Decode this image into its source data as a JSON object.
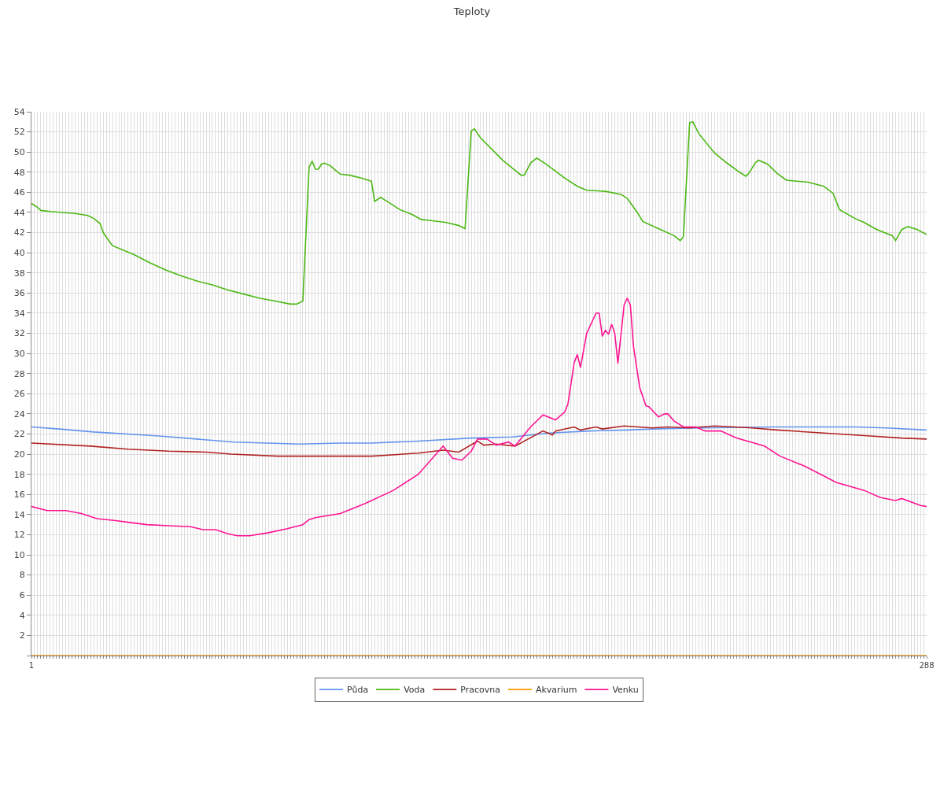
{
  "chart_data": {
    "type": "line",
    "title": "Teploty",
    "xlim": [
      1,
      288
    ],
    "xticks": [
      1,
      {
        "value": 2,
        "label": null
      },
      {
        "value": 3,
        "label": null
      },
      {
        "value": 4,
        "label": null
      },
      {
        "value": 5,
        "label": null
      },
      {
        "value": 6,
        "label": null
      },
      {
        "value": 7,
        "label": null
      },
      {
        "value": 8,
        "label": null
      },
      {
        "value": 9,
        "label": null
      },
      {
        "value": 10,
        "label": null
      },
      {
        "value": 11,
        "label": null
      },
      {
        "value": 12,
        "label": null
      },
      {
        "value": 13,
        "label": null
      },
      {
        "value": 14,
        "label": null
      },
      {
        "value": 15,
        "label": null
      },
      {
        "value": 16,
        "label": null
      },
      {
        "value": 17,
        "label": null
      },
      {
        "value": 18,
        "label": null
      },
      {
        "value": 19,
        "label": null
      },
      {
        "value": 20,
        "label": null
      },
      {
        "value": 21,
        "label": null
      },
      {
        "value": 22,
        "label": null
      },
      {
        "value": 23,
        "label": null
      },
      {
        "value": 24,
        "label": null
      },
      {
        "value": 25,
        "label": null
      },
      {
        "value": 26,
        "label": null
      },
      {
        "value": 27,
        "label": null
      },
      {
        "value": 28,
        "label": null
      },
      {
        "value": 29,
        "label": null
      },
      {
        "value": 30,
        "label": null
      },
      {
        "value": 31,
        "label": null
      },
      {
        "value": 32,
        "label": null
      },
      {
        "value": 33,
        "label": null
      },
      {
        "value": 34,
        "label": null
      },
      {
        "value": 35,
        "label": null
      },
      {
        "value": 36,
        "label": null
      },
      {
        "value": 37,
        "label": null
      },
      {
        "value": 38,
        "label": null
      },
      {
        "value": 39,
        "label": null
      },
      {
        "value": 40,
        "label": null
      },
      {
        "value": 41,
        "label": null
      },
      {
        "value": 42,
        "label": null
      },
      {
        "value": 43,
        "label": null
      },
      {
        "value": 44,
        "label": null
      },
      {
        "value": 45,
        "label": null
      },
      {
        "value": 46,
        "label": null
      },
      {
        "value": 47,
        "label": null
      },
      {
        "value": 48,
        "label": null
      },
      {
        "value": 49,
        "label": null
      },
      {
        "value": 50,
        "label": null
      },
      {
        "value": 51,
        "label": null
      },
      {
        "value": 52,
        "label": null
      },
      {
        "value": 53,
        "label": null
      },
      {
        "value": 54,
        "label": null
      },
      {
        "value": 55,
        "label": null
      },
      {
        "value": 56,
        "label": null
      },
      {
        "value": 57,
        "label": null
      },
      {
        "value": 58,
        "label": null
      },
      {
        "value": 59,
        "label": null
      },
      {
        "value": 60,
        "label": null
      },
      {
        "value": 61,
        "label": null
      },
      {
        "value": 62,
        "label": null
      },
      {
        "value": 63,
        "label": null
      },
      {
        "value": 64,
        "label": null
      },
      {
        "value": 65,
        "label": null
      },
      {
        "value": 66,
        "label": null
      },
      {
        "value": 67,
        "label": null
      },
      {
        "value": 68,
        "label": null
      },
      {
        "value": 69,
        "label": null
      },
      {
        "value": 70,
        "label": null
      },
      {
        "value": 71,
        "label": null
      },
      {
        "value": 72,
        "label": null
      },
      {
        "value": 73,
        "label": null
      },
      {
        "value": 74,
        "label": null
      },
      {
        "value": 75,
        "label": null
      },
      {
        "value": 76,
        "label": null
      },
      {
        "value": 77,
        "label": null
      },
      {
        "value": 78,
        "label": null
      },
      {
        "value": 79,
        "label": null
      },
      {
        "value": 80,
        "label": null
      },
      {
        "value": 81,
        "label": null
      },
      {
        "value": 82,
        "label": null
      },
      {
        "value": 83,
        "label": null
      },
      {
        "value": 84,
        "label": null
      },
      {
        "value": 85,
        "label": null
      },
      {
        "value": 86,
        "label": null
      },
      {
        "value": 87,
        "label": null
      },
      {
        "value": 88,
        "label": null
      },
      {
        "value": 89,
        "label": null
      },
      {
        "value": 90,
        "label": null
      },
      {
        "value": 91,
        "label": null
      },
      {
        "value": 92,
        "label": null
      },
      {
        "value": 93,
        "label": null
      },
      {
        "value": 94,
        "label": null
      },
      {
        "value": 95,
        "label": null
      },
      {
        "value": 96,
        "label": null
      },
      {
        "value": 97,
        "label": null
      },
      {
        "value": 98,
        "label": null
      },
      {
        "value": 99,
        "label": null
      },
      {
        "value": 100,
        "label": null
      },
      {
        "value": 101,
        "label": null
      },
      {
        "value": 102,
        "label": null
      },
      {
        "value": 103,
        "label": null
      },
      {
        "value": 104,
        "label": null
      },
      {
        "value": 105,
        "label": null
      },
      {
        "value": 106,
        "label": null
      },
      {
        "value": 107,
        "label": null
      },
      {
        "value": 108,
        "label": null
      },
      {
        "value": 109,
        "label": null
      },
      {
        "value": 110,
        "label": null
      },
      {
        "value": 111,
        "label": null
      },
      {
        "value": 112,
        "label": null
      },
      {
        "value": 113,
        "label": null
      },
      {
        "value": 114,
        "label": null
      },
      {
        "value": 115,
        "label": null
      },
      {
        "value": 116,
        "label": null
      },
      {
        "value": 117,
        "label": null
      },
      {
        "value": 118,
        "label": null
      },
      {
        "value": 119,
        "label": null
      },
      {
        "value": 120,
        "label": null
      },
      {
        "value": 121,
        "label": null
      },
      {
        "value": 122,
        "label": null
      },
      {
        "value": 123,
        "label": null
      },
      {
        "value": 124,
        "label": null
      },
      {
        "value": 125,
        "label": null
      },
      {
        "value": 126,
        "label": null
      },
      {
        "value": 127,
        "label": null
      },
      {
        "value": 128,
        "label": null
      },
      {
        "value": 129,
        "label": null
      },
      {
        "value": 130,
        "label": null
      },
      {
        "value": 131,
        "label": null
      },
      {
        "value": 132,
        "label": null
      },
      {
        "value": 133,
        "label": null
      },
      {
        "value": 134,
        "label": null
      },
      {
        "value": 135,
        "label": null
      },
      {
        "value": 136,
        "label": null
      },
      {
        "value": 137,
        "label": null
      },
      {
        "value": 138,
        "label": null
      },
      {
        "value": 139,
        "label": null
      },
      {
        "value": 140,
        "label": null
      },
      {
        "value": 141,
        "label": null
      },
      {
        "value": 142,
        "label": null
      },
      {
        "value": 143,
        "label": null
      },
      {
        "value": 144,
        "label": null
      },
      {
        "value": 145,
        "label": null
      },
      {
        "value": 146,
        "label": null
      },
      {
        "value": 147,
        "label": null
      },
      {
        "value": 148,
        "label": null
      },
      {
        "value": 149,
        "label": null
      },
      {
        "value": 150,
        "label": null
      },
      {
        "value": 151,
        "label": null
      },
      {
        "value": 152,
        "label": null
      },
      {
        "value": 153,
        "label": null
      },
      {
        "value": 154,
        "label": null
      },
      {
        "value": 155,
        "label": null
      },
      {
        "value": 156,
        "label": null
      },
      {
        "value": 157,
        "label": null
      },
      {
        "value": 158,
        "label": null
      },
      {
        "value": 159,
        "label": null
      },
      {
        "value": 160,
        "label": null
      },
      {
        "value": 161,
        "label": null
      },
      {
        "value": 162,
        "label": null
      },
      {
        "value": 163,
        "label": null
      },
      {
        "value": 164,
        "label": null
      },
      {
        "value": 165,
        "label": null
      },
      {
        "value": 166,
        "label": null
      },
      {
        "value": 167,
        "label": null
      },
      {
        "value": 168,
        "label": null
      },
      {
        "value": 169,
        "label": null
      },
      {
        "value": 170,
        "label": null
      },
      {
        "value": 171,
        "label": null
      },
      {
        "value": 172,
        "label": null
      },
      {
        "value": 173,
        "label": null
      },
      {
        "value": 174,
        "label": null
      },
      {
        "value": 175,
        "label": null
      },
      {
        "value": 176,
        "label": null
      },
      {
        "value": 177,
        "label": null
      },
      {
        "value": 178,
        "label": null
      },
      {
        "value": 179,
        "label": null
      },
      {
        "value": 180,
        "label": null
      },
      {
        "value": 181,
        "label": null
      },
      {
        "value": 182,
        "label": null
      },
      {
        "value": 183,
        "label": null
      },
      {
        "value": 184,
        "label": null
      },
      {
        "value": 185,
        "label": null
      },
      {
        "value": 186,
        "label": null
      },
      {
        "value": 187,
        "label": null
      },
      {
        "value": 188,
        "label": null
      },
      {
        "value": 189,
        "label": null
      },
      {
        "value": 190,
        "label": null
      },
      {
        "value": 191,
        "label": null
      },
      {
        "value": 192,
        "label": null
      },
      {
        "value": 193,
        "label": null
      },
      {
        "value": 194,
        "label": null
      },
      {
        "value": 195,
        "label": null
      },
      {
        "value": 196,
        "label": null
      },
      {
        "value": 197,
        "label": null
      },
      {
        "value": 198,
        "label": null
      },
      {
        "value": 199,
        "label": null
      },
      {
        "value": 200,
        "label": null
      },
      {
        "value": 201,
        "label": null
      },
      {
        "value": 202,
        "label": null
      },
      {
        "value": 203,
        "label": null
      },
      {
        "value": 204,
        "label": null
      },
      {
        "value": 205,
        "label": null
      },
      {
        "value": 206,
        "label": null
      },
      {
        "value": 207,
        "label": null
      },
      {
        "value": 208,
        "label": null
      },
      {
        "value": 209,
        "label": null
      },
      {
        "value": 210,
        "label": null
      },
      {
        "value": 211,
        "label": null
      },
      {
        "value": 212,
        "label": null
      },
      {
        "value": 213,
        "label": null
      },
      {
        "value": 214,
        "label": null
      },
      {
        "value": 215,
        "label": null
      },
      {
        "value": 216,
        "label": null
      },
      {
        "value": 217,
        "label": null
      },
      {
        "value": 218,
        "label": null
      },
      {
        "value": 219,
        "label": null
      },
      {
        "value": 220,
        "label": null
      },
      {
        "value": 221,
        "label": null
      },
      {
        "value": 222,
        "label": null
      },
      {
        "value": 223,
        "label": null
      },
      {
        "value": 224,
        "label": null
      },
      {
        "value": 225,
        "label": null
      },
      {
        "value": 226,
        "label": null
      },
      {
        "value": 227,
        "label": null
      },
      {
        "value": 228,
        "label": null
      },
      {
        "value": 229,
        "label": null
      },
      {
        "value": 230,
        "label": null
      },
      {
        "value": 231,
        "label": null
      },
      {
        "value": 232,
        "label": null
      },
      {
        "value": 233,
        "label": null
      },
      {
        "value": 234,
        "label": null
      },
      {
        "value": 235,
        "label": null
      },
      {
        "value": 236,
        "label": null
      },
      {
        "value": 237,
        "label": null
      },
      {
        "value": 238,
        "label": null
      },
      {
        "value": 239,
        "label": null
      },
      {
        "value": 240,
        "label": null
      },
      {
        "value": 241,
        "label": null
      },
      {
        "value": 242,
        "label": null
      },
      {
        "value": 243,
        "label": null
      },
      {
        "value": 244,
        "label": null
      },
      {
        "value": 245,
        "label": null
      },
      {
        "value": 246,
        "label": null
      },
      {
        "value": 247,
        "label": null
      },
      {
        "value": 248,
        "label": null
      },
      {
        "value": 249,
        "label": null
      },
      {
        "value": 250,
        "label": null
      },
      {
        "value": 251,
        "label": null
      },
      {
        "value": 252,
        "label": null
      },
      {
        "value": 253,
        "label": null
      },
      {
        "value": 254,
        "label": null
      },
      {
        "value": 255,
        "label": null
      },
      {
        "value": 256,
        "label": null
      },
      {
        "value": 257,
        "label": null
      },
      {
        "value": 258,
        "label": null
      },
      {
        "value": 259,
        "label": null
      },
      {
        "value": 260,
        "label": null
      },
      {
        "value": 261,
        "label": null
      },
      {
        "value": 262,
        "label": null
      },
      {
        "value": 263,
        "label": null
      },
      {
        "value": 264,
        "label": null
      },
      {
        "value": 265,
        "label": null
      },
      {
        "value": 266,
        "label": null
      },
      {
        "value": 267,
        "label": null
      },
      {
        "value": 268,
        "label": null
      },
      {
        "value": 269,
        "label": null
      },
      {
        "value": 270,
        "label": null
      },
      {
        "value": 271,
        "label": null
      },
      {
        "value": 272,
        "label": null
      },
      {
        "value": 273,
        "label": null
      },
      {
        "value": 274,
        "label": null
      },
      {
        "value": 275,
        "label": null
      },
      {
        "value": 276,
        "label": null
      },
      {
        "value": 277,
        "label": null
      },
      {
        "value": 278,
        "label": null
      },
      {
        "value": 279,
        "label": null
      },
      {
        "value": 280,
        "label": null
      },
      {
        "value": 281,
        "label": null
      },
      {
        "value": 282,
        "label": null
      },
      {
        "value": 283,
        "label": null
      },
      {
        "value": 284,
        "label": null
      },
      {
        "value": 285,
        "label": null
      },
      {
        "value": 286,
        "label": null
      },
      {
        "value": 287,
        "label": null
      },
      288
    ],
    "ylim": [
      0,
      54
    ],
    "yticks": [
      {
        "value": 0,
        "label": null
      },
      2,
      4,
      6,
      8,
      10,
      12,
      14,
      16,
      18,
      20,
      22,
      24,
      26,
      28,
      30,
      32,
      34,
      36,
      38,
      40,
      42,
      44,
      46,
      48,
      50,
      52,
      54
    ],
    "grid": true,
    "legend": "bottom",
    "marker": "none",
    "line_style": "solid",
    "series": [
      {
        "name": "Půda",
        "color": "#6495ed",
        "x": [
          1,
          10,
          21,
          42,
          54,
          66,
          87,
          100,
          110,
          125,
          142,
          155,
          167,
          180,
          192,
          200,
          215,
          240,
          265,
          275,
          288
        ],
        "values": [
          22.7,
          22.5,
          22.2,
          21.8,
          21.5,
          21.2,
          21.0,
          21.1,
          21.1,
          21.3,
          21.6,
          21.7,
          22.1,
          22.3,
          22.4,
          22.5,
          22.6,
          22.7,
          22.7,
          22.6,
          22.4
        ]
      },
      {
        "name": "Voda",
        "color": "#4cb814",
        "x": [
          1,
          3,
          4,
          7,
          11,
          15,
          19,
          21,
          23,
          24,
          26,
          27,
          34,
          39,
          44,
          49,
          54,
          59,
          64,
          69,
          74,
          79,
          84,
          86,
          88,
          90,
          91,
          92,
          93,
          94,
          95,
          97,
          98,
          100,
          103,
          107,
          109,
          110,
          111,
          113,
          114,
          116,
          119,
          123,
          126,
          129,
          134,
          138,
          140,
          142,
          143,
          145,
          152,
          154,
          158,
          159,
          161,
          163,
          166,
          172,
          176,
          179,
          185,
          190,
          192,
          195,
          197,
          202,
          207,
          209,
          210,
          212,
          213,
          215,
          220,
          224,
          228,
          230,
          231,
          233,
          234,
          237,
          240,
          243,
          250,
          255,
          258,
          260,
          265,
          268,
          272,
          277,
          278,
          280,
          282,
          285,
          288
        ],
        "values": [
          44.9,
          44.5,
          44.2,
          44.1,
          44.0,
          43.9,
          43.7,
          43.4,
          42.9,
          42.0,
          41.1,
          40.7,
          39.8,
          39.0,
          38.3,
          37.7,
          37.2,
          36.8,
          36.3,
          35.9,
          35.5,
          35.2,
          34.9,
          34.9,
          35.2,
          48.5,
          49.1,
          48.3,
          48.3,
          48.8,
          48.9,
          48.6,
          48.3,
          47.8,
          47.7,
          47.4,
          47.2,
          47.1,
          45.1,
          45.5,
          45.3,
          44.9,
          44.3,
          43.8,
          43.3,
          43.2,
          43.0,
          42.7,
          42.4,
          52.1,
          52.3,
          51.4,
          49.2,
          48.7,
          47.7,
          47.7,
          48.9,
          49.4,
          48.8,
          47.4,
          46.6,
          46.2,
          46.1,
          45.8,
          45.4,
          44.1,
          43.1,
          42.4,
          41.7,
          41.2,
          41.6,
          52.9,
          53.0,
          51.8,
          49.9,
          48.9,
          48.0,
          47.6,
          47.9,
          48.9,
          49.2,
          48.8,
          47.9,
          47.2,
          47.0,
          46.6,
          45.9,
          44.3,
          43.4,
          43.0,
          42.3,
          41.7,
          41.2,
          42.3,
          42.6,
          42.3,
          41.8
        ]
      },
      {
        "name": "Pracovna",
        "color": "#b22222",
        "x": [
          1,
          20,
          32,
          45,
          57,
          65,
          80,
          110,
          125,
          133,
          138,
          144,
          146,
          150,
          156,
          165,
          168,
          169,
          175,
          177,
          182,
          184,
          191,
          200,
          205,
          212,
          220,
          232,
          240,
          260,
          270,
          280,
          288
        ],
        "values": [
          21.1,
          20.8,
          20.5,
          20.3,
          20.2,
          20.0,
          19.8,
          19.8,
          20.1,
          20.4,
          20.2,
          21.3,
          20.9,
          21.0,
          20.8,
          22.3,
          21.9,
          22.3,
          22.7,
          22.4,
          22.7,
          22.5,
          22.8,
          22.6,
          22.7,
          22.6,
          22.8,
          22.6,
          22.4,
          22.0,
          21.8,
          21.6,
          21.5
        ]
      },
      {
        "name": "Akvarium",
        "color": "#ff9900",
        "x": [
          1,
          288
        ],
        "values": [
          0,
          0
        ]
      },
      {
        "name": "Venku",
        "color": "#ff1493",
        "x": [
          1,
          6,
          12,
          17,
          22,
          28,
          33,
          38,
          45,
          52,
          56,
          60,
          64,
          67,
          71,
          77,
          83,
          88,
          90,
          92,
          100,
          108,
          117,
          125,
          133,
          136,
          139,
          142,
          144,
          147,
          150,
          154,
          156,
          161,
          165,
          169,
          172,
          173,
          175,
          176,
          177,
          179,
          182,
          183,
          184,
          185,
          186,
          187,
          188,
          189,
          191,
          192,
          193,
          194,
          196,
          198,
          199,
          202,
          204,
          205,
          207,
          210,
          214,
          217,
          222,
          227,
          236,
          241,
          249,
          259,
          268,
          273,
          278,
          280,
          286,
          288
        ],
        "values": [
          14.8,
          14.4,
          14.4,
          14.1,
          13.6,
          13.4,
          13.2,
          13.0,
          12.9,
          12.8,
          12.5,
          12.5,
          12.1,
          11.9,
          11.9,
          12.2,
          12.6,
          13.0,
          13.5,
          13.7,
          14.1,
          15.1,
          16.4,
          18.0,
          20.8,
          19.6,
          19.4,
          20.3,
          21.5,
          21.5,
          20.9,
          21.2,
          20.8,
          22.7,
          23.9,
          23.4,
          24.2,
          25.0,
          29.1,
          29.9,
          28.6,
          32.0,
          34.0,
          34.0,
          31.7,
          32.3,
          31.9,
          32.9,
          32.0,
          29.0,
          34.8,
          35.5,
          34.8,
          30.7,
          26.6,
          24.8,
          24.7,
          23.7,
          24.0,
          24.0,
          23.3,
          22.7,
          22.7,
          22.3,
          22.3,
          21.6,
          20.8,
          19.8,
          18.8,
          17.2,
          16.4,
          15.7,
          15.4,
          15.6,
          14.9,
          14.8
        ]
      }
    ]
  }
}
